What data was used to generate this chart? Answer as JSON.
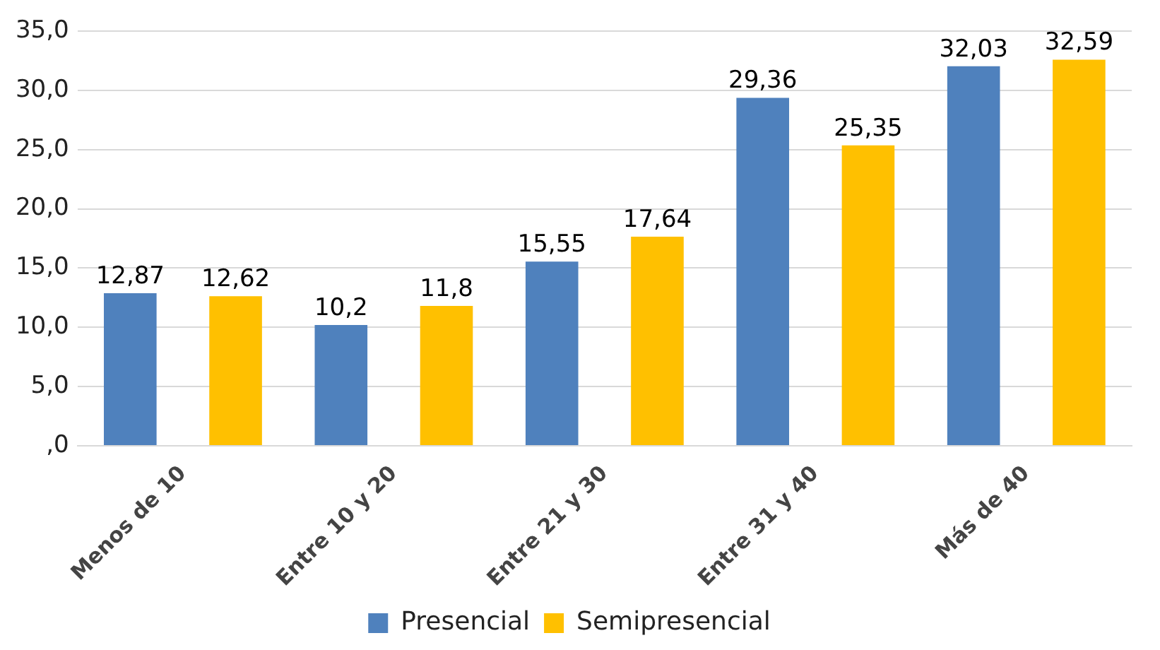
{
  "chart_data": {
    "type": "bar",
    "categories": [
      "Menos de 10",
      "Entre 10 y 20",
      "Entre 21 y 30",
      "Entre 31 y 40",
      "Más de 40"
    ],
    "series": [
      {
        "name": "Presencial",
        "color": "#4f81bd",
        "values": [
          12.87,
          10.2,
          15.55,
          29.36,
          32.03
        ],
        "value_labels": [
          "12,87",
          "10,2",
          "15,55",
          "29,36",
          "32,03"
        ]
      },
      {
        "name": "Semipresencial",
        "color": "#ffc000",
        "values": [
          12.62,
          11.8,
          17.64,
          25.35,
          32.59
        ],
        "value_labels": [
          "12,62",
          "11,8",
          "17,64",
          "25,35",
          "32,59"
        ]
      }
    ],
    "ylim": [
      0,
      35
    ],
    "yticks": [
      {
        "value": 0,
        "label": ",0"
      },
      {
        "value": 5,
        "label": "5,0"
      },
      {
        "value": 10,
        "label": "10,0"
      },
      {
        "value": 15,
        "label": "15,0"
      },
      {
        "value": 20,
        "label": "20,0"
      },
      {
        "value": 25,
        "label": "25,0"
      },
      {
        "value": 30,
        "label": "30,0"
      },
      {
        "value": 35,
        "label": "35,0"
      }
    ],
    "grid": "y",
    "legend": "bottom"
  }
}
